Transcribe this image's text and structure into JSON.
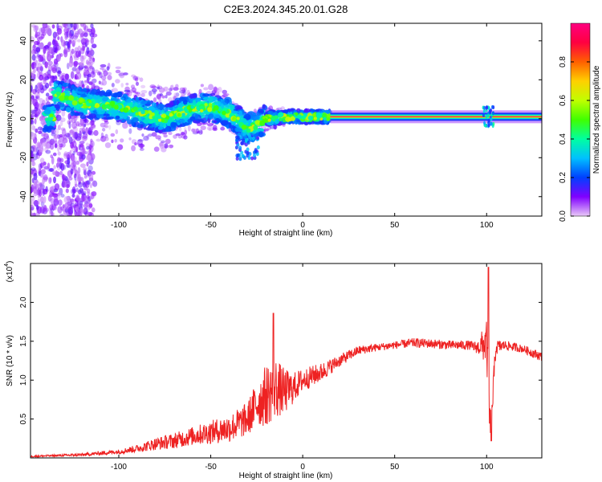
{
  "figure": {
    "title": "C2E3.2024.345.20.01.G28"
  },
  "chart_data": [
    {
      "type": "heatmap",
      "title": "",
      "xlabel": "Height of straight line (km)",
      "ylabel": "Frequency (Hz)",
      "xlim": [
        -148,
        130
      ],
      "ylim": [
        -50,
        49
      ],
      "xticks": [
        -100,
        -50,
        0,
        50,
        100
      ],
      "yticks": [
        -40,
        -20,
        0,
        20,
        40
      ],
      "colorbar": {
        "label": "Normalized spectral amplitude",
        "range": [
          0,
          1
        ],
        "ticks": [
          0.0,
          0.2,
          0.4,
          0.6,
          0.8
        ],
        "colormap": [
          "#e9c9f7",
          "#8000ff",
          "#0040ff",
          "#00c0ff",
          "#00ffa0",
          "#40ff00",
          "#c0ff00",
          "#ffd000",
          "#ff6000",
          "#ff0040",
          "#ff0080"
        ]
      },
      "ridge": [
        {
          "x": -135,
          "f": 13
        },
        {
          "x": -120,
          "f": 8
        },
        {
          "x": -105,
          "f": 7
        },
        {
          "x": -95,
          "f": 5
        },
        {
          "x": -85,
          "f": 2
        },
        {
          "x": -75,
          "f": 0
        },
        {
          "x": -60,
          "f": 5
        },
        {
          "x": -50,
          "f": 6
        },
        {
          "x": -40,
          "f": 3
        },
        {
          "x": -30,
          "f": -5
        },
        {
          "x": -25,
          "f": -3
        },
        {
          "x": -20,
          "f": 0
        },
        {
          "x": -10,
          "f": 1
        },
        {
          "x": 0,
          "f": 1
        },
        {
          "x": 15,
          "f": 1
        },
        {
          "x": 50,
          "f": 1
        },
        {
          "x": 100,
          "f": 1
        },
        {
          "x": 130,
          "f": 1
        }
      ],
      "tone_band": {
        "x_start": 15,
        "x_end": 130,
        "f": 1
      }
    },
    {
      "type": "line",
      "title": "",
      "xlabel": "Height of straight line (km)",
      "ylabel": "SNR (10 * v/v)",
      "y_multiplier": "(x10",
      "y_multiplier_exp": "4",
      "y_multiplier_close": ")",
      "xlim": [
        -148,
        130
      ],
      "ylim": [
        0,
        2.5
      ],
      "xticks": [
        -100,
        -50,
        0,
        50,
        100
      ],
      "yticks": [
        0.5,
        1.0,
        1.5,
        2.0
      ],
      "series": [
        {
          "color": "#ee2222",
          "x": [
            -148,
            -120,
            -100,
            -90,
            -80,
            -70,
            -60,
            -50,
            -40,
            -30,
            -25,
            -20,
            -15,
            -10,
            -5,
            0,
            10,
            20,
            30,
            40,
            50,
            60,
            70,
            80,
            90,
            95,
            100,
            102,
            105,
            110,
            120,
            125,
            130
          ],
          "y": [
            0.02,
            0.04,
            0.08,
            0.12,
            0.18,
            0.22,
            0.28,
            0.33,
            0.38,
            0.5,
            0.7,
            0.8,
            0.9,
            0.85,
            0.9,
            1.0,
            1.1,
            1.25,
            1.38,
            1.42,
            1.45,
            1.48,
            1.47,
            1.45,
            1.45,
            1.42,
            1.48,
            0.3,
            1.42,
            1.45,
            1.4,
            1.35,
            1.3
          ],
          "spread": [
            0.01,
            0.02,
            0.03,
            0.05,
            0.08,
            0.1,
            0.12,
            0.15,
            0.18,
            0.22,
            0.3,
            0.4,
            0.4,
            0.3,
            0.2,
            0.15,
            0.12,
            0.08,
            0.06,
            0.05,
            0.05,
            0.06,
            0.06,
            0.06,
            0.06,
            0.08,
            0.3,
            0.3,
            0.1,
            0.06,
            0.05,
            0.06,
            0.06
          ]
        }
      ],
      "peaks": [
        {
          "x": -16,
          "y": 1.86
        },
        {
          "x": 101,
          "y": 2.45
        },
        {
          "x": 102.5,
          "y": 0.22
        }
      ]
    }
  ]
}
